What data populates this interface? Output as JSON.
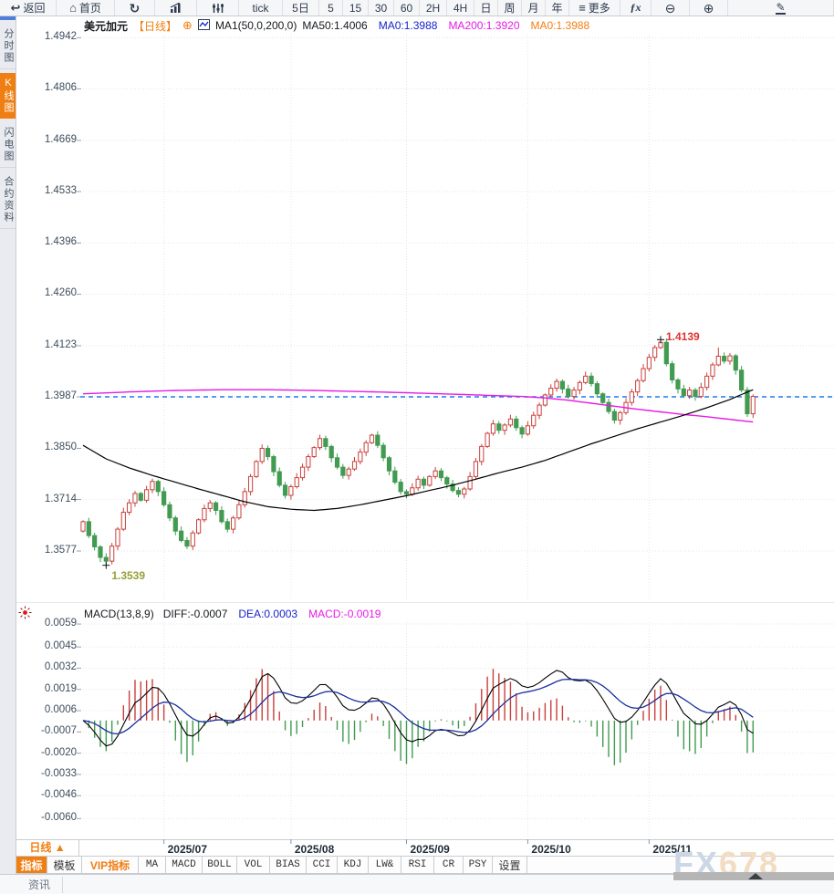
{
  "toolbar": {
    "items": [
      {
        "name": "back",
        "icon": "back",
        "label": "返回",
        "w": 62
      },
      {
        "name": "home",
        "icon": "home",
        "label": "首页",
        "w": 64
      },
      {
        "name": "refresh",
        "icon": "refresh",
        "label": "",
        "w": 44
      },
      {
        "name": "chart-style-bars",
        "icon": "barchart",
        "label": "",
        "w": 46
      },
      {
        "name": "chart-style-sliders",
        "icon": "sliders",
        "label": "",
        "w": 46
      },
      {
        "name": "interval-tick",
        "icon": "",
        "label": "tick",
        "w": 48
      },
      {
        "name": "interval-5d",
        "icon": "",
        "label": "5日",
        "w": 40
      },
      {
        "name": "interval-5",
        "icon": "",
        "label": "5",
        "w": 26
      },
      {
        "name": "interval-15",
        "icon": "",
        "label": "15",
        "w": 28
      },
      {
        "name": "interval-30",
        "icon": "",
        "label": "30",
        "w": 28
      },
      {
        "name": "interval-60",
        "icon": "",
        "label": "60",
        "w": 28
      },
      {
        "name": "interval-2h",
        "icon": "",
        "label": "2H",
        "w": 30
      },
      {
        "name": "interval-4h",
        "icon": "",
        "label": "4H",
        "w": 30
      },
      {
        "name": "interval-day",
        "icon": "",
        "label": "日",
        "w": 26
      },
      {
        "name": "interval-week",
        "icon": "",
        "label": "周",
        "w": 26
      },
      {
        "name": "interval-month",
        "icon": "",
        "label": "月",
        "w": 26
      },
      {
        "name": "interval-year",
        "icon": "",
        "label": "年",
        "w": 26
      },
      {
        "name": "more-menu",
        "icon": "menu",
        "label": "更多",
        "w": 56
      },
      {
        "name": "indicator-fx",
        "icon": "fx",
        "label": "",
        "w": 34
      },
      {
        "name": "zoom-out",
        "icon": "zoomout",
        "label": "",
        "w": 42
      },
      {
        "name": "zoom-in",
        "icon": "zoomin",
        "label": "",
        "w": 42
      },
      {
        "name": "draw-tool",
        "icon": "pencil",
        "label": "",
        "w": 70
      }
    ]
  },
  "sidebar": {
    "items": [
      {
        "label": "分时图",
        "active": false
      },
      {
        "label": "K线图",
        "active": true
      },
      {
        "label": "闪电图",
        "active": false
      },
      {
        "label": "合约资料",
        "active": false
      }
    ]
  },
  "header": {
    "symbol": "美元加元",
    "period_tag": "【日线】",
    "ma_config": "MA1(50,0,200,0)",
    "values": [
      {
        "text": "MA50:1.4006",
        "color": "#16191d"
      },
      {
        "text": "MA0:1.3988",
        "color": "#1722c8"
      },
      {
        "text": "MA200:1.3920",
        "color": "#e619e6"
      },
      {
        "text": "MA0:1.3988",
        "color": "#f07f13"
      }
    ]
  },
  "macd_header": {
    "params": "MACD(13,8,9)",
    "values": [
      {
        "text": "DIFF:-0.0007",
        "color": "#16191d"
      },
      {
        "text": "DEA:0.0003",
        "color": "#1722c8"
      },
      {
        "text": "MACD:-0.0019",
        "color": "#e619e6"
      }
    ]
  },
  "bottom": {
    "period_label": "日线 ▲",
    "tabs": [
      {
        "label": "指标",
        "style": "active",
        "w": 34
      },
      {
        "label": "模板",
        "style": "",
        "w": 38
      },
      {
        "label": "VIP指标",
        "style": "vip",
        "w": 62
      },
      {
        "label": "MA",
        "style": "mono",
        "w": 30
      },
      {
        "label": "MACD",
        "style": "mono",
        "w": 40
      },
      {
        "label": "BOLL",
        "style": "mono",
        "w": 38
      },
      {
        "label": "VOL",
        "style": "mono",
        "w": 36
      },
      {
        "label": "BIAS",
        "style": "mono",
        "w": 40
      },
      {
        "label": "CCI",
        "style": "mono",
        "w": 34
      },
      {
        "label": "KDJ",
        "style": "mono",
        "w": 34
      },
      {
        "label": "LW&",
        "style": "mono",
        "w": 36
      },
      {
        "label": "RSI",
        "style": "mono",
        "w": 36
      },
      {
        "label": "CR",
        "style": "mono",
        "w": 32
      },
      {
        "label": "PSY",
        "style": "mono",
        "w": 32
      },
      {
        "label": "设置",
        "style": "",
        "w": 38
      }
    ],
    "news_tab": "资讯",
    "watermark_fx": "FX",
    "watermark_num": "678"
  },
  "chart_data": [
    {
      "type": "candlestick",
      "title": "美元加元 日线",
      "y_ticks": [
        1.4942,
        1.4806,
        1.4669,
        1.4533,
        1.4396,
        1.426,
        1.4123,
        1.3987,
        1.385,
        1.3714,
        1.3577
      ],
      "x_labels": [
        "2025/07",
        "2025/08",
        "2025/09",
        "2025/10",
        "2025/11"
      ],
      "month_tick_indices": [
        14,
        36,
        56,
        77,
        98
      ],
      "last_close_line": 1.3987,
      "high_annotation": {
        "index": 100,
        "value": 1.4139,
        "label": "1.4139"
      },
      "low_annotation": {
        "index": 4,
        "value": 1.3539,
        "label": "1.3539"
      },
      "first_open": 1.363,
      "closes": [
        1.3655,
        1.3618,
        1.3588,
        1.356,
        1.355,
        1.359,
        1.3635,
        1.368,
        1.3705,
        1.373,
        1.3712,
        1.374,
        1.3762,
        1.3735,
        1.37,
        1.3665,
        1.363,
        1.3605,
        1.359,
        1.3625,
        1.366,
        1.369,
        1.3705,
        1.3685,
        1.3655,
        1.3635,
        1.3665,
        1.37,
        1.3735,
        1.3775,
        1.3815,
        1.385,
        1.3828,
        1.3788,
        1.3752,
        1.3725,
        1.3748,
        1.3772,
        1.38,
        1.3828,
        1.3852,
        1.3876,
        1.3855,
        1.3825,
        1.38,
        1.3778,
        1.3795,
        1.3815,
        1.384,
        1.3865,
        1.3885,
        1.3858,
        1.3825,
        1.379,
        1.376,
        1.3735,
        1.3728,
        1.3745,
        1.3768,
        1.3752,
        1.3775,
        1.379,
        1.3772,
        1.3755,
        1.3738,
        1.3728,
        1.3742,
        1.3775,
        1.3815,
        1.3855,
        1.389,
        1.3915,
        1.3898,
        1.3912,
        1.3928,
        1.3905,
        1.3888,
        1.391,
        1.3938,
        1.3965,
        1.3992,
        1.401,
        1.4028,
        1.4008,
        1.3988,
        1.4005,
        1.4025,
        1.4042,
        1.4022,
        1.3995,
        1.3972,
        1.3948,
        1.3925,
        1.3945,
        1.3972,
        1.4,
        1.403,
        1.4062,
        1.4092,
        1.4118,
        1.4132,
        1.4075,
        1.4032,
        1.4008,
        1.399,
        1.4005,
        1.3988,
        1.4012,
        1.4042,
        1.4072,
        1.4095,
        1.4082,
        1.4096,
        1.4058,
        1.4005,
        1.3942,
        1.3988
      ],
      "ma50_points": [
        [
          0,
          1.3858
        ],
        [
          4,
          1.3822
        ],
        [
          8,
          1.3798
        ],
        [
          12,
          1.3778
        ],
        [
          16,
          1.376
        ],
        [
          20,
          1.3742
        ],
        [
          24,
          1.3725
        ],
        [
          28,
          1.3708
        ],
        [
          32,
          1.3695
        ],
        [
          36,
          1.3688
        ],
        [
          40,
          1.3685
        ],
        [
          44,
          1.369
        ],
        [
          48,
          1.37
        ],
        [
          52,
          1.3712
        ],
        [
          56,
          1.3724
        ],
        [
          60,
          1.3738
        ],
        [
          64,
          1.3752
        ],
        [
          68,
          1.3768
        ],
        [
          72,
          1.3785
        ],
        [
          76,
          1.38
        ],
        [
          80,
          1.3818
        ],
        [
          84,
          1.384
        ],
        [
          88,
          1.3862
        ],
        [
          92,
          1.3882
        ],
        [
          96,
          1.3902
        ],
        [
          100,
          1.392
        ],
        [
          104,
          1.3938
        ],
        [
          108,
          1.3958
        ],
        [
          112,
          1.398
        ],
        [
          116,
          1.4006
        ]
      ],
      "ma200_points": [
        [
          0,
          1.3995
        ],
        [
          8,
          1.4
        ],
        [
          16,
          1.4004
        ],
        [
          24,
          1.4006
        ],
        [
          32,
          1.4006
        ],
        [
          40,
          1.4004
        ],
        [
          48,
          1.4001
        ],
        [
          56,
          1.3998
        ],
        [
          64,
          1.3994
        ],
        [
          72,
          1.399
        ],
        [
          76,
          1.3988
        ],
        [
          80,
          1.3984
        ],
        [
          84,
          1.3978
        ],
        [
          88,
          1.397
        ],
        [
          92,
          1.3962
        ],
        [
          96,
          1.3954
        ],
        [
          100,
          1.3947
        ],
        [
          104,
          1.394
        ],
        [
          108,
          1.3934
        ],
        [
          112,
          1.3927
        ],
        [
          116,
          1.392
        ]
      ],
      "colors": {
        "up": "#c8403c",
        "down": "#419b50",
        "ma50": "#000000",
        "ma200": "#e619e6",
        "last_close": "#1e7ce8"
      }
    },
    {
      "type": "macd",
      "params": "MACD(13,8,9)",
      "ema_short": 8,
      "ema_long": 13,
      "signal": 9,
      "diff_last": -0.0007,
      "dea_last": 0.0003,
      "macd_last": -0.0019,
      "y_ticks": [
        0.0059,
        0.0045,
        0.0032,
        0.0019,
        0.0006,
        -0.0007,
        -0.002,
        -0.0033,
        -0.0046,
        -0.006
      ],
      "colors": {
        "diff": "#000000",
        "dea": "#1a2f9e",
        "pos": "#c8403c",
        "neg": "#419b50"
      }
    }
  ]
}
